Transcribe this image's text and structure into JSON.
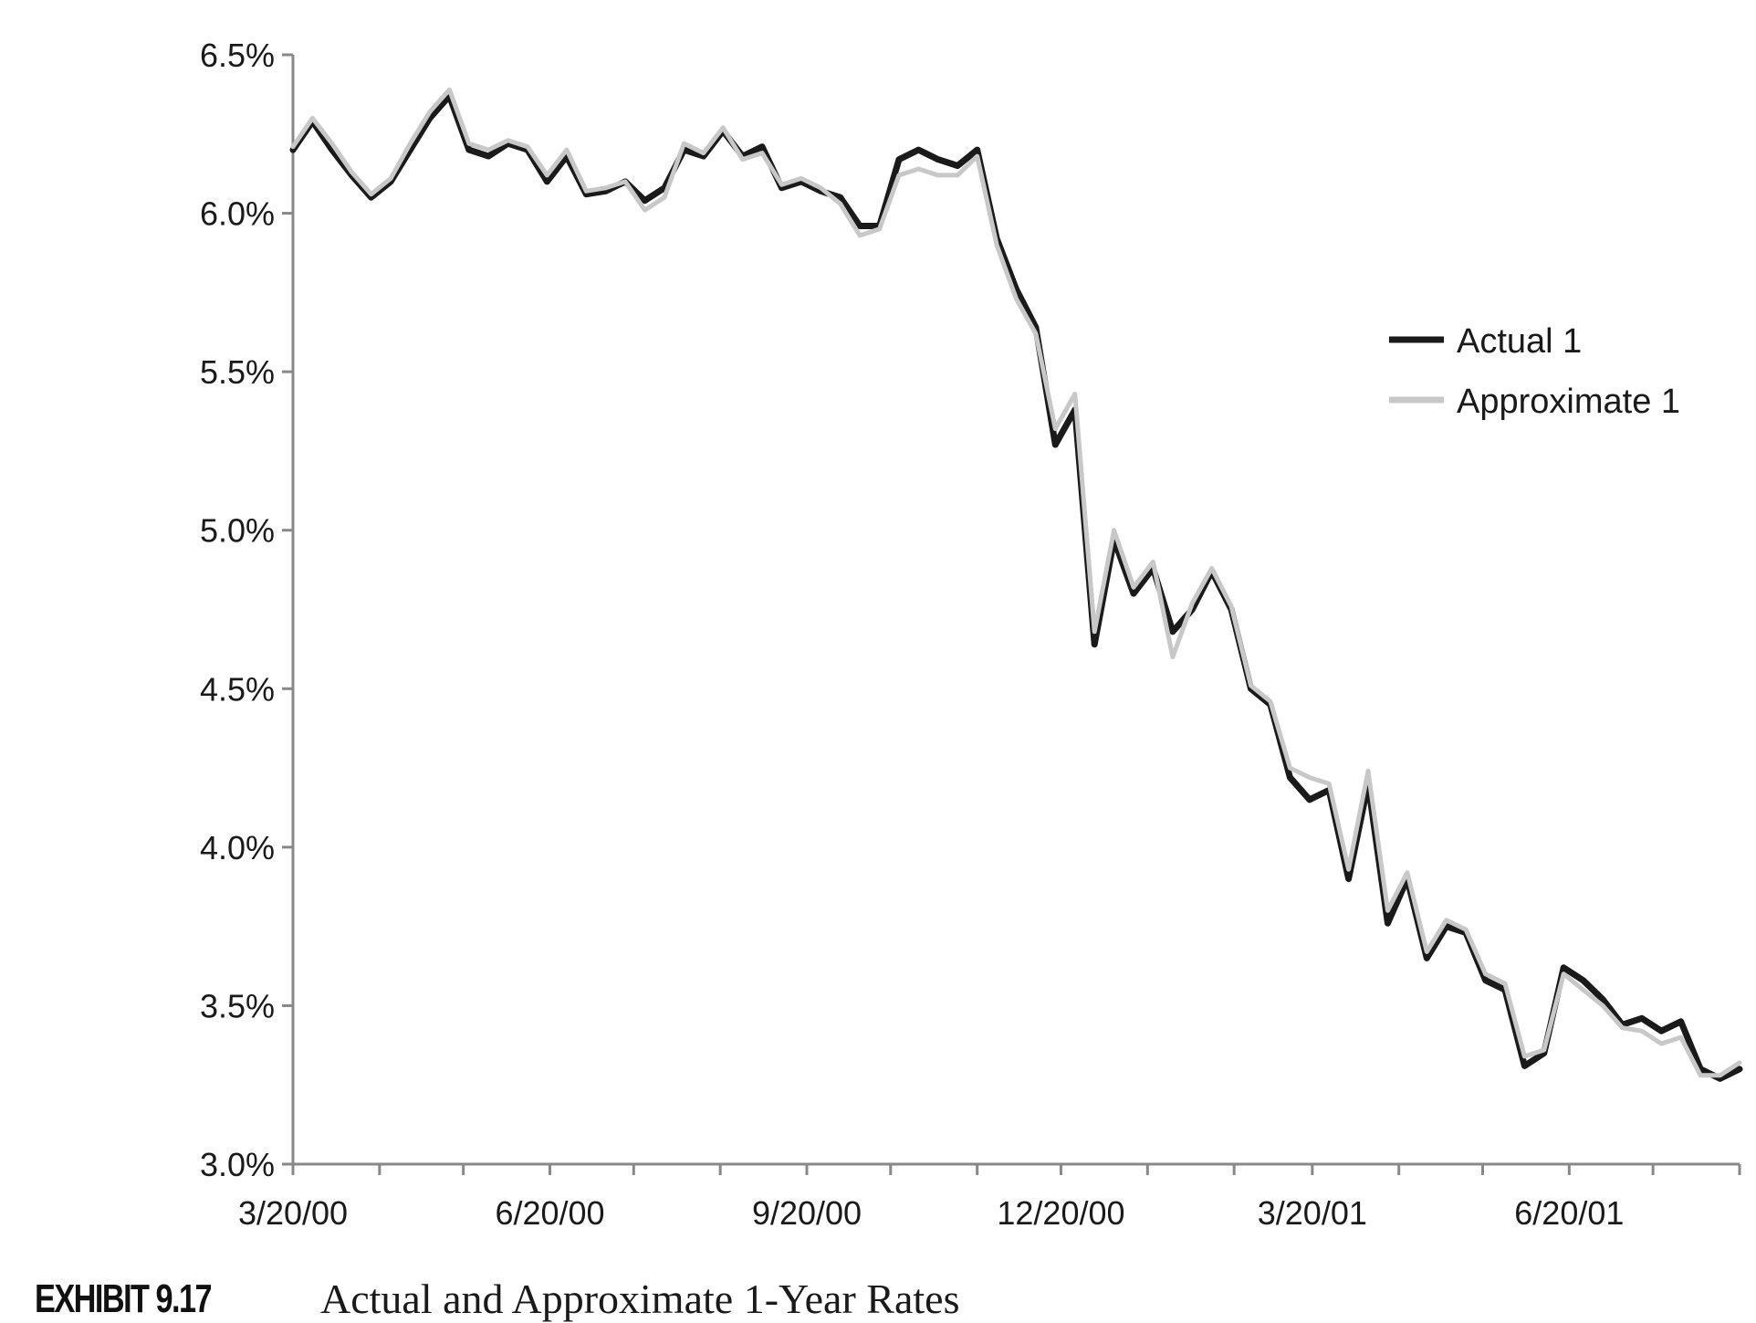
{
  "chart_data": {
    "type": "line",
    "title": "",
    "xlabel": "",
    "ylabel": "",
    "x_range": [
      "3/20/00",
      "8/20/01"
    ],
    "ylim": [
      3.0,
      6.5
    ],
    "y_ticks": [
      "3.0%",
      "3.5%",
      "4.0%",
      "4.5%",
      "5.0%",
      "5.5%",
      "6.0%",
      "6.5%"
    ],
    "x_tick_labels": [
      "3/20/00",
      "6/20/00",
      "9/20/00",
      "12/20/00",
      "3/20/01",
      "6/20/01"
    ],
    "grid": false,
    "legend_position": "right",
    "series": [
      {
        "name": "Actual 1",
        "color": "#1a1a1a",
        "x": [
          "3/20/00",
          "3/27/00",
          "4/3/00",
          "4/10/00",
          "4/17/00",
          "4/24/00",
          "5/1/00",
          "5/8/00",
          "5/15/00",
          "5/22/00",
          "5/29/00",
          "6/5/00",
          "6/12/00",
          "6/19/00",
          "6/26/00",
          "7/3/00",
          "7/10/00",
          "7/17/00",
          "7/24/00",
          "7/31/00",
          "8/7/00",
          "8/14/00",
          "8/21/00",
          "8/28/00",
          "9/4/00",
          "9/11/00",
          "9/18/00",
          "9/25/00",
          "10/2/00",
          "10/9/00",
          "10/16/00",
          "10/23/00",
          "10/30/00",
          "11/6/00",
          "11/13/00",
          "11/20/00",
          "11/27/00",
          "12/4/00",
          "12/11/00",
          "12/18/00",
          "12/25/00",
          "1/1/01",
          "1/8/01",
          "1/15/01",
          "1/22/01",
          "1/29/01",
          "2/5/01",
          "2/12/01",
          "2/19/01",
          "2/26/01",
          "3/5/01",
          "3/12/01",
          "3/19/01",
          "3/26/01",
          "4/2/01",
          "4/9/01",
          "4/16/01",
          "4/23/01",
          "4/30/01",
          "5/7/01",
          "5/14/01",
          "5/21/01",
          "5/28/01",
          "6/4/01",
          "6/11/01",
          "6/18/01",
          "6/25/01",
          "7/2/01",
          "7/9/01",
          "7/16/01",
          "7/23/01",
          "7/30/01",
          "8/6/01",
          "8/13/01",
          "8/20/01"
        ],
        "values": [
          6.2,
          6.29,
          6.2,
          6.12,
          6.05,
          6.1,
          6.2,
          6.3,
          6.37,
          6.2,
          6.18,
          6.22,
          6.2,
          6.1,
          6.18,
          6.06,
          6.07,
          6.1,
          6.04,
          6.08,
          6.2,
          6.18,
          6.26,
          6.18,
          6.21,
          6.08,
          6.1,
          6.07,
          6.05,
          5.96,
          5.96,
          6.17,
          6.2,
          6.17,
          6.15,
          6.2,
          5.92,
          5.76,
          5.64,
          5.27,
          5.38,
          4.64,
          4.97,
          4.8,
          4.88,
          4.68,
          4.75,
          4.87,
          4.75,
          4.5,
          4.45,
          4.22,
          4.15,
          4.18,
          3.9,
          4.2,
          3.76,
          3.9,
          3.65,
          3.75,
          3.73,
          3.58,
          3.55,
          3.31,
          3.35,
          3.62,
          3.58,
          3.52,
          3.44,
          3.46,
          3.42,
          3.45,
          3.3,
          3.27,
          3.3
        ]
      },
      {
        "name": "Approximate 1",
        "color": "#c8c8c8",
        "x": [
          "3/20/00",
          "3/27/00",
          "4/3/00",
          "4/10/00",
          "4/17/00",
          "4/24/00",
          "5/1/00",
          "5/8/00",
          "5/15/00",
          "5/22/00",
          "5/29/00",
          "6/5/00",
          "6/12/00",
          "6/19/00",
          "6/26/00",
          "7/3/00",
          "7/10/00",
          "7/17/00",
          "7/24/00",
          "7/31/00",
          "8/7/00",
          "8/14/00",
          "8/21/00",
          "8/28/00",
          "9/4/00",
          "9/11/00",
          "9/18/00",
          "9/25/00",
          "10/2/00",
          "10/9/00",
          "10/16/00",
          "10/23/00",
          "10/30/00",
          "11/6/00",
          "11/13/00",
          "11/20/00",
          "11/27/00",
          "12/4/00",
          "12/11/00",
          "12/18/00",
          "12/25/00",
          "1/1/01",
          "1/8/01",
          "1/15/01",
          "1/22/01",
          "1/29/01",
          "2/5/01",
          "2/12/01",
          "2/19/01",
          "2/26/01",
          "3/5/01",
          "3/12/01",
          "3/19/01",
          "3/26/01",
          "4/2/01",
          "4/9/01",
          "4/16/01",
          "4/23/01",
          "4/30/01",
          "5/7/01",
          "5/14/01",
          "5/21/01",
          "5/28/01",
          "6/4/01",
          "6/11/01",
          "6/18/01",
          "6/25/01",
          "7/2/01",
          "7/9/01",
          "7/16/01",
          "7/23/01",
          "7/30/01",
          "8/6/01",
          "8/13/01",
          "8/20/01"
        ],
        "values": [
          6.21,
          6.3,
          6.22,
          6.13,
          6.06,
          6.11,
          6.22,
          6.32,
          6.39,
          6.22,
          6.2,
          6.23,
          6.21,
          6.12,
          6.2,
          6.07,
          6.08,
          6.1,
          6.01,
          6.05,
          6.22,
          6.19,
          6.27,
          6.17,
          6.19,
          6.09,
          6.11,
          6.08,
          6.03,
          5.93,
          5.95,
          6.12,
          6.14,
          6.12,
          6.12,
          6.18,
          5.9,
          5.73,
          5.62,
          5.32,
          5.43,
          4.68,
          5.0,
          4.82,
          4.9,
          4.6,
          4.77,
          4.88,
          4.76,
          4.51,
          4.46,
          4.25,
          4.22,
          4.2,
          3.93,
          4.24,
          3.8,
          3.92,
          3.67,
          3.77,
          3.74,
          3.6,
          3.57,
          3.34,
          3.36,
          3.6,
          3.55,
          3.5,
          3.43,
          3.42,
          3.38,
          3.4,
          3.28,
          3.28,
          3.32
        ]
      }
    ]
  },
  "caption": {
    "exhibit_label": "EXHIBIT 9.17",
    "title": "Actual and Approximate 1-Year Rates"
  }
}
